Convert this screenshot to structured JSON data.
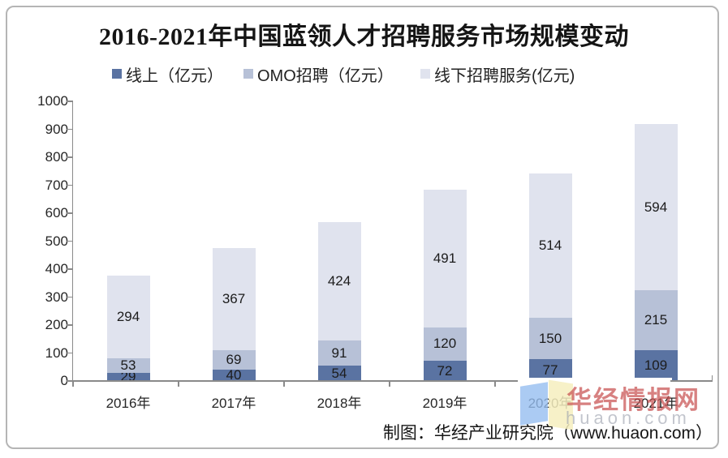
{
  "chart_data": {
    "type": "bar",
    "stacked": true,
    "title": "2016-2021年中国蓝领人才招聘服务市场规模变动",
    "categories": [
      "2016年",
      "2017年",
      "2018年",
      "2019年",
      "2020年",
      "2021年"
    ],
    "series": [
      {
        "name": "线上（亿元）",
        "color": "#5a73a2",
        "values": [
          29,
          40,
          54,
          72,
          77,
          109
        ]
      },
      {
        "name": "OMO招聘（亿元）",
        "color": "#b7c1d7",
        "values": [
          53,
          69,
          91,
          120,
          150,
          215
        ]
      },
      {
        "name": "线下招聘服务(亿元)",
        "color": "#e0e3ee",
        "values": [
          294,
          367,
          424,
          491,
          514,
          594
        ]
      }
    ],
    "xlabel": "",
    "ylabel": "",
    "ylim": [
      0,
      1000
    ],
    "ytick_step": 100,
    "grid": false,
    "legend_position": "top",
    "data_labels": true
  },
  "axis": {
    "line_color": "#8a8a8a",
    "label_color": "#262626"
  },
  "watermark": {
    "brand": "华经情报网",
    "url": "huaon.com",
    "brand_color": "#c95252",
    "url_color": "#9aa0ac",
    "logo_blue": "#96bef0",
    "logo_yellow": "#f6eebe"
  },
  "source": {
    "credit": "制图：华经产业研究院（www.huaon.com）"
  }
}
